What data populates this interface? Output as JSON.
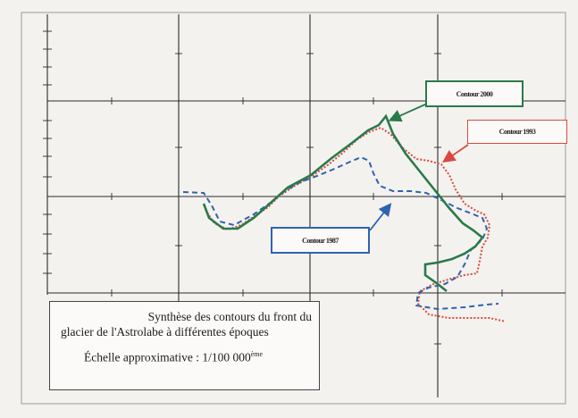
{
  "caption": {
    "line1": "Synthèse des contours du front du",
    "line2": "glacier de l'Astrolabe à différentes époques",
    "scale_prefix": "Échelle approximative : 1/100 000",
    "scale_suffix": "ème"
  },
  "labels": {
    "contour_2000": "Contour 2000",
    "contour_1993": "Contour 1993",
    "contour_1987": "Contour 1987"
  },
  "colors": {
    "contour_2000": "#2a7a4a",
    "contour_1993": "#d9493f",
    "contour_1987": "#2f63b0",
    "grid": "#2b2b2b"
  }
}
